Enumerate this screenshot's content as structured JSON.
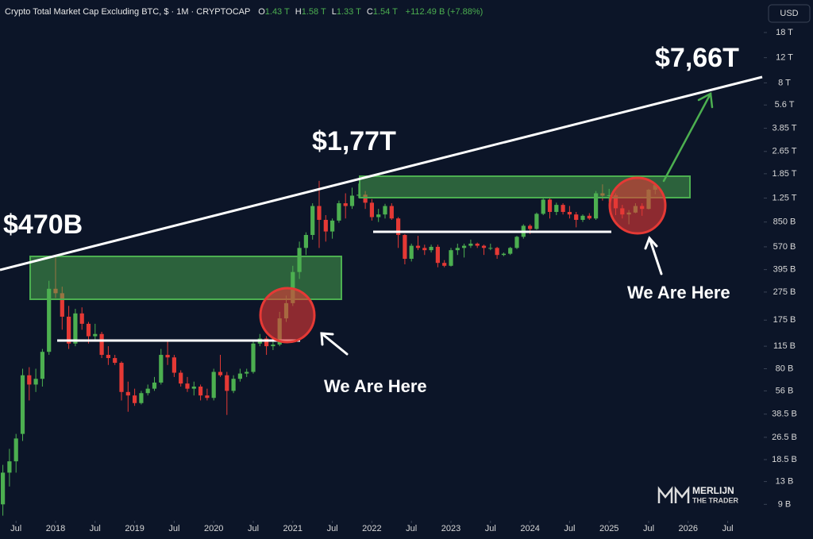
{
  "chart_data": {
    "type": "candlestick",
    "title": "Crypto Total Market Cap Excluding BTC, $ · 1M · CRYPTOCAP",
    "ohlc_legend": [
      {
        "key": "O",
        "value": "1.43 T"
      },
      {
        "key": "H",
        "value": "1.58 T"
      },
      {
        "key": "L",
        "value": "1.33 T"
      },
      {
        "key": "C",
        "value": "1.54 T"
      }
    ],
    "change": "+112.49 B (+7.88%)",
    "currency": "USD",
    "annotations": [
      "$470B",
      "$1,77T",
      "$7,66T",
      "We Are Here",
      "We Are Here"
    ],
    "watermark": [
      "MERLIJN",
      "THE TRADER"
    ],
    "up_color": "#4caf50",
    "down_color": "#e53935",
    "log_scale": true,
    "x": [
      "2017-05",
      "2017-06",
      "2017-07",
      "2017-08",
      "2017-09",
      "2017-10",
      "2017-11",
      "2017-12",
      "2018-01",
      "2018-02",
      "2018-03",
      "2018-04",
      "2018-05",
      "2018-06",
      "2018-07",
      "2018-08",
      "2018-09",
      "2018-10",
      "2018-11",
      "2018-12",
      "2019-01",
      "2019-02",
      "2019-03",
      "2019-04",
      "2019-05",
      "2019-06",
      "2019-07",
      "2019-08",
      "2019-09",
      "2019-10",
      "2019-11",
      "2019-12",
      "2020-01",
      "2020-02",
      "2020-03",
      "2020-04",
      "2020-05",
      "2020-06",
      "2020-07",
      "2020-08",
      "2020-09",
      "2020-10",
      "2020-11",
      "2020-12",
      "2021-01",
      "2021-02",
      "2021-03",
      "2021-04",
      "2021-05",
      "2021-06",
      "2021-07",
      "2021-08",
      "2021-09",
      "2021-10",
      "2021-11",
      "2021-12",
      "2022-01",
      "2022-02",
      "2022-03",
      "2022-04",
      "2022-05",
      "2022-06",
      "2022-07",
      "2022-08",
      "2022-09",
      "2022-10",
      "2022-11",
      "2022-12",
      "2023-01",
      "2023-02",
      "2023-03",
      "2023-04",
      "2023-05",
      "2023-06",
      "2023-07",
      "2023-08",
      "2023-09",
      "2023-10",
      "2023-11",
      "2023-12",
      "2024-01",
      "2024-02",
      "2024-03",
      "2024-04",
      "2024-05",
      "2024-06",
      "2024-07",
      "2024-08",
      "2024-09",
      "2024-10",
      "2024-11",
      "2024-12",
      "2025-01",
      "2025-02",
      "2025-03",
      "2025-04",
      "2025-05",
      "2025-06",
      "2025-07",
      "2025-08"
    ],
    "open": [
      9,
      15,
      18,
      28,
      72,
      62,
      68,
      105,
      290,
      270,
      185,
      120,
      195,
      165,
      135,
      140,
      100,
      95,
      88,
      55,
      52,
      46,
      54,
      58,
      64,
      100,
      96,
      75,
      63,
      58,
      60,
      52,
      50,
      76,
      72,
      56,
      68,
      74,
      76,
      120,
      130,
      115,
      118,
      180,
      230,
      380,
      560,
      690,
      1100,
      880,
      730,
      870,
      1150,
      1100,
      1300,
      1320,
      1160,
      920,
      960,
      1100,
      900,
      690,
      470,
      580,
      560,
      540,
      570,
      440,
      420,
      540,
      560,
      580,
      600,
      580,
      560,
      560,
      500,
      510,
      560,
      670,
      800,
      760,
      970,
      1220,
      1000,
      1120,
      1000,
      960,
      880,
      940,
      900,
      1350,
      1300,
      1310,
      1060,
      960,
      990,
      1100,
      1050,
      1430
    ],
    "high": [
      17,
      22,
      28,
      80,
      82,
      80,
      110,
      330,
      480,
      300,
      220,
      210,
      215,
      170,
      165,
      145,
      115,
      100,
      90,
      65,
      58,
      56,
      62,
      70,
      110,
      125,
      100,
      78,
      70,
      65,
      62,
      58,
      80,
      100,
      76,
      72,
      80,
      80,
      125,
      140,
      135,
      125,
      200,
      260,
      420,
      620,
      720,
      1150,
      1650,
      950,
      900,
      1200,
      1350,
      1480,
      1580,
      1400,
      1230,
      1050,
      1140,
      1150,
      920,
      700,
      600,
      680,
      590,
      590,
      590,
      460,
      560,
      600,
      600,
      640,
      610,
      590,
      600,
      570,
      520,
      570,
      680,
      820,
      820,
      990,
      1270,
      1250,
      1160,
      1150,
      1100,
      1000,
      960,
      980,
      1400,
      1560,
      1450,
      1350,
      1120,
      1030,
      1150,
      1150,
      1450,
      1580
    ],
    "low": [
      7.5,
      12,
      15,
      25,
      48,
      55,
      60,
      100,
      250,
      150,
      110,
      115,
      150,
      120,
      125,
      95,
      85,
      85,
      48,
      40,
      44,
      45,
      52,
      56,
      62,
      85,
      70,
      60,
      55,
      52,
      48,
      48,
      48,
      70,
      38,
      54,
      65,
      70,
      74,
      115,
      100,
      108,
      115,
      170,
      220,
      340,
      500,
      640,
      560,
      620,
      650,
      840,
      900,
      1050,
      1250,
      1050,
      870,
      850,
      900,
      880,
      560,
      430,
      450,
      540,
      500,
      520,
      410,
      410,
      415,
      500,
      480,
      560,
      560,
      500,
      540,
      470,
      490,
      500,
      550,
      650,
      700,
      750,
      950,
      900,
      950,
      960,
      900,
      780,
      850,
      880,
      880,
      1200,
      1180,
      950,
      900,
      820,
      980,
      940,
      1040,
      1330
    ],
    "close": [
      15,
      18,
      26,
      72,
      62,
      68,
      105,
      290,
      270,
      185,
      120,
      195,
      165,
      135,
      140,
      100,
      95,
      88,
      55,
      52,
      46,
      54,
      58,
      64,
      100,
      96,
      75,
      63,
      58,
      60,
      52,
      50,
      76,
      72,
      56,
      68,
      74,
      76,
      120,
      130,
      115,
      118,
      180,
      230,
      380,
      560,
      690,
      1100,
      880,
      730,
      870,
      1150,
      1100,
      1300,
      1320,
      1160,
      920,
      960,
      1100,
      900,
      690,
      470,
      580,
      560,
      540,
      570,
      440,
      420,
      540,
      560,
      580,
      600,
      580,
      560,
      560,
      500,
      510,
      560,
      670,
      800,
      760,
      970,
      1220,
      1000,
      1120,
      1000,
      960,
      880,
      940,
      900,
      1350,
      1300,
      1310,
      1060,
      960,
      990,
      1100,
      1050,
      1430,
      1540
    ],
    "xlim": [
      "2017-04",
      "2026-10"
    ],
    "xticks": [
      {
        "value": "2017-07",
        "label": "Jul"
      },
      {
        "value": "2018-01",
        "label": "2018"
      },
      {
        "value": "2018-07",
        "label": "Jul"
      },
      {
        "value": "2019-01",
        "label": "2019"
      },
      {
        "value": "2019-07",
        "label": "Jul"
      },
      {
        "value": "2020-01",
        "label": "2020"
      },
      {
        "value": "2020-07",
        "label": "Jul"
      },
      {
        "value": "2021-01",
        "label": "2021"
      },
      {
        "value": "2021-07",
        "label": "Jul"
      },
      {
        "value": "2022-01",
        "label": "2022"
      },
      {
        "value": "2022-07",
        "label": "Jul"
      },
      {
        "value": "2023-01",
        "label": "2023"
      },
      {
        "value": "2023-07",
        "label": "Jul"
      },
      {
        "value": "2024-01",
        "label": "2024"
      },
      {
        "value": "2024-07",
        "label": "Jul"
      },
      {
        "value": "2025-01",
        "label": "2025"
      },
      {
        "value": "2025-07",
        "label": "Jul"
      },
      {
        "value": "2026-01",
        "label": "2026"
      },
      {
        "value": "2026-07",
        "label": "Jul"
      }
    ],
    "ylim": [
      7,
      30000
    ],
    "yticks": [
      {
        "value": 18000,
        "label": "18 T"
      },
      {
        "value": 12000,
        "label": "12 T"
      },
      {
        "value": 8000,
        "label": "8 T"
      },
      {
        "value": 5600,
        "label": "5.6 T"
      },
      {
        "value": 3850,
        "label": "3.85 T"
      },
      {
        "value": 2650,
        "label": "2.65 T"
      },
      {
        "value": 1850,
        "label": "1.85 T"
      },
      {
        "value": 1250,
        "label": "1.25 T"
      },
      {
        "value": 850,
        "label": "850 B"
      },
      {
        "value": 570,
        "label": "570 B"
      },
      {
        "value": 395,
        "label": "395 B"
      },
      {
        "value": 275,
        "label": "275 B"
      },
      {
        "value": 175,
        "label": "175 B"
      },
      {
        "value": 115,
        "label": "115 B"
      },
      {
        "value": 80,
        "label": "80 B"
      },
      {
        "value": 56,
        "label": "56 B"
      },
      {
        "value": 38.5,
        "label": "38.5 B"
      },
      {
        "value": 26.5,
        "label": "26.5 B"
      },
      {
        "value": 18.5,
        "label": "18.5 B"
      },
      {
        "value": 13,
        "label": "13 B"
      },
      {
        "value": 9,
        "label": "9 B"
      }
    ]
  }
}
